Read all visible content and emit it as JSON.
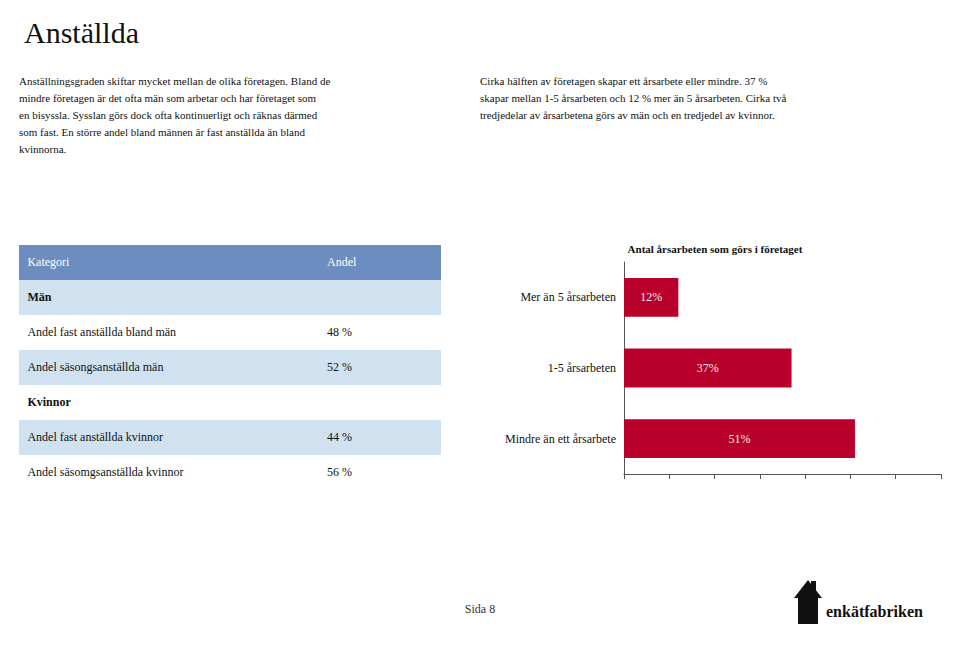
{
  "title": "Anställda",
  "texts": [
    "Anställningsgraden skiftar mycket mellan de olika företagen. Bland de\nmindre företagen är det ofta män som arbetar och har företaget som\nen bisyssla. Sysslan görs dock ofta kontinuerligt och räknas därmed\nsom fast. En större andel bland männen är fast anställda än bland\nkvinnorna.",
    "Cirka hälften av företagen skapar ett årsarbete eller mindre. 37 %\nskapar mellan 1-5 årsarbeten och 12 % mer än 5 årsarbeten. Cirka två\ntredjedelar av årsarbetena görs av män och en tredjedel av kvinnor."
  ],
  "table": {
    "header": [
      "Kategori",
      "Andel"
    ],
    "colors": [
      "#6B8DBF",
      "#D0E2F0"
    ],
    "rows": [
      {
        "label": "Män",
        "value": null,
        "bold": true
      },
      {
        "label": "Andel fast anställda bland män",
        "value": "48 %",
        "bold": false
      },
      {
        "label": "Andel säsongsanställda män",
        "value": "52 %",
        "bold": false
      },
      {
        "label": "Kvinnor",
        "value": null,
        "bold": true
      },
      {
        "label": "Andel fast anställda kvinnor",
        "value": "44 %",
        "bold": false
      },
      {
        "label": "Andel säsomgsanställda kvinnor",
        "value": "56 %",
        "bold": false
      }
    ]
  },
  "footer": "Sida 8",
  "logo": "enkätfabriken",
  "chart_data": {
    "type": "bar",
    "orientation": "horizontal",
    "title": "Antal årsarbeten som görs i företaget",
    "categories": [
      "Mer än 5 årsarbeten",
      "1-5 årsarbeten",
      "Mindre än ett årsarbete"
    ],
    "values": [
      12,
      37,
      51
    ],
    "value_labels": [
      "12%",
      "37%",
      "51%"
    ],
    "data_labels": true,
    "color": "#B8002A",
    "xlim": [
      0,
      70
    ],
    "xticks": [
      0,
      10,
      20,
      30,
      40,
      50,
      60,
      70
    ],
    "tick_labels": "y",
    "grid": false
  }
}
